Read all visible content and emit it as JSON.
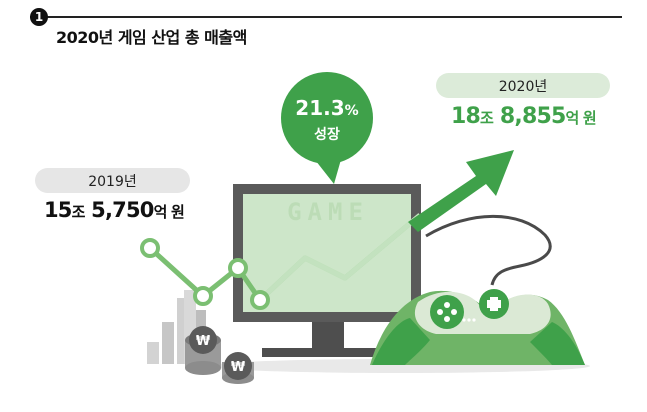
{
  "header": {
    "step_number": "1",
    "title": "2020년 게임 산업 총 매출액"
  },
  "year_2019": {
    "label": "2019년",
    "value_jo": "15",
    "unit_jo": "조",
    "value_eok": "5,750",
    "unit_eok": "억 원"
  },
  "year_2020": {
    "label": "2020년",
    "value_jo": "18",
    "unit_jo": "조",
    "value_eok": "8,855",
    "unit_eok": "억 원"
  },
  "growth": {
    "percent": "21.3",
    "percent_sign": "%",
    "label": "성장"
  },
  "monitor": {
    "screen_text": "GAME"
  },
  "colors": {
    "accent_green": "#3fa14a",
    "light_green": "#dcebd9",
    "gray_pill": "#e6e6e6",
    "monitor_frame": "#555555"
  }
}
